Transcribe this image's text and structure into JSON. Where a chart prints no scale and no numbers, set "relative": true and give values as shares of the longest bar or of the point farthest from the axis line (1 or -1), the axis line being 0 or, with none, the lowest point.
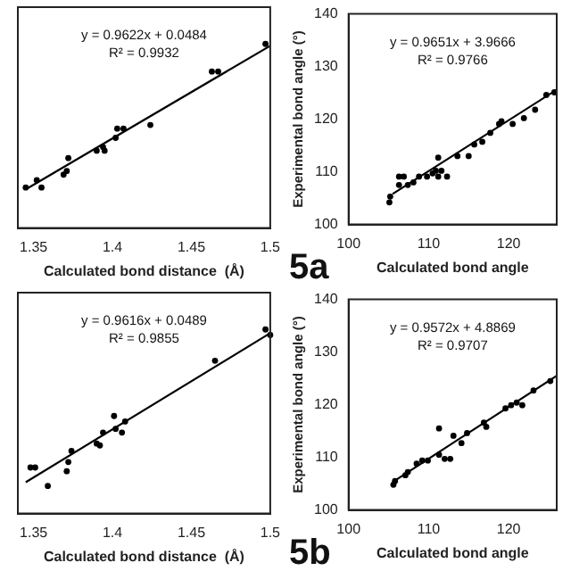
{
  "chart_data": [
    {
      "type": "scatter",
      "relative": true,
      "xlabel": "Calculated bond distance  (Å)",
      "xlim": [
        1.34,
        1.5
      ],
      "xticks": [
        1.35,
        1.4,
        1.45,
        1.5
      ],
      "tick_labels": "x",
      "annotations": [
        "y = 0.9622x + 0.0484",
        "R² = 0.9932"
      ],
      "series": [
        {
          "type": "scatter",
          "marker": "circle",
          "color": "#000000",
          "x": [
            1.345,
            1.352,
            1.355,
            1.369,
            1.371,
            1.372,
            1.39,
            1.394,
            1.395,
            1.402,
            1.403,
            1.407,
            1.424,
            1.463,
            1.467,
            1.497
          ],
          "values": [
            0.22,
            0.26,
            0.22,
            0.29,
            0.31,
            0.38,
            0.42,
            0.44,
            0.42,
            0.49,
            0.54,
            0.54,
            0.56,
            0.85,
            0.85,
            1.0
          ]
        },
        {
          "type": "line",
          "marker": "none",
          "color": "#000000",
          "x": [
            1.345,
            1.5
          ],
          "values": [
            0.21,
            0.99
          ]
        }
      ]
    },
    {
      "type": "scatter",
      "xlabel": "Calculated bond angle",
      "ylabel": "Experimental bond angle (°)",
      "xlim": [
        100,
        126
      ],
      "xticks": [
        100,
        110,
        120
      ],
      "ylim": [
        100,
        140
      ],
      "yticks": [
        100,
        110,
        120,
        130,
        140
      ],
      "annotations": [
        "y = 0.9651x + 3.9666",
        "R² = 0.9766",
        "5a"
      ],
      "series": [
        {
          "type": "scatter",
          "marker": "circle",
          "color": "#000000",
          "x": [
            105.1,
            105.2,
            106.3,
            106.9,
            106.3,
            107.4,
            108.1,
            108.8,
            109.8,
            110.5,
            111.2,
            110.9,
            111.6,
            112.3,
            111.2,
            113.6,
            115.0,
            115.7,
            116.7,
            117.7,
            118.8,
            119.1,
            120.5,
            121.9,
            123.3,
            124.7,
            125.7
          ],
          "values": [
            104.2,
            105.3,
            109.1,
            109.1,
            107.5,
            107.5,
            108.0,
            109.1,
            109.1,
            109.7,
            109.1,
            110.2,
            110.2,
            109.1,
            112.7,
            113.0,
            113.0,
            115.2,
            115.7,
            117.4,
            119.1,
            119.6,
            119.1,
            120.2,
            121.8,
            124.6,
            125.1
          ]
        },
        {
          "type": "line",
          "marker": "none",
          "color": "#000000",
          "x": [
            105.5,
            126
          ],
          "values": [
            105.8,
            125.6
          ]
        }
      ]
    },
    {
      "type": "scatter",
      "relative": true,
      "xlabel": "Calculated bond distance  (Å)",
      "xlim": [
        1.34,
        1.5
      ],
      "xticks": [
        1.35,
        1.4,
        1.45,
        1.5
      ],
      "tick_labels": "x",
      "annotations": [
        "y = 0.9616x + 0.0489",
        "R² = 0.9855"
      ],
      "series": [
        {
          "type": "scatter",
          "marker": "circle",
          "color": "#000000",
          "x": [
            1.348,
            1.351,
            1.359,
            1.371,
            1.372,
            1.374,
            1.39,
            1.392,
            1.394,
            1.401,
            1.402,
            1.406,
            1.408,
            1.465,
            1.497,
            1.5
          ],
          "values": [
            0.25,
            0.25,
            0.15,
            0.23,
            0.28,
            0.34,
            0.38,
            0.37,
            0.44,
            0.53,
            0.46,
            0.44,
            0.5,
            0.83,
            1.0,
            0.97
          ]
        },
        {
          "type": "line",
          "marker": "none",
          "color": "#000000",
          "x": [
            1.345,
            1.5
          ],
          "values": [
            0.17,
            0.98
          ]
        }
      ]
    },
    {
      "type": "scatter",
      "xlabel": "Calculated bond angle",
      "ylabel": "Experimental bond angle (°)",
      "xlim": [
        100,
        126
      ],
      "xticks": [
        100,
        110,
        120
      ],
      "ylim": [
        100,
        140
      ],
      "yticks": [
        100,
        110,
        120,
        130,
        140
      ],
      "annotations": [
        "y = 0.9572x + 4.8869",
        "R² = 0.9707",
        "5b"
      ],
      "series": [
        {
          "type": "scatter",
          "marker": "circle",
          "color": "#000000",
          "x": [
            105.6,
            105.8,
            107.4,
            107.1,
            108.5,
            109.2,
            109.9,
            111.3,
            112.0,
            112.7,
            111.3,
            113.1,
            114.1,
            114.8,
            116.9,
            117.2,
            119.6,
            120.3,
            121.0,
            121.7,
            123.1,
            125.2
          ],
          "values": [
            104.8,
            105.5,
            107.2,
            106.6,
            108.8,
            109.4,
            109.4,
            110.5,
            109.7,
            109.7,
            115.5,
            114.1,
            112.7,
            114.6,
            116.6,
            115.8,
            119.3,
            119.9,
            120.4,
            119.9,
            122.7,
            124.5
          ]
        },
        {
          "type": "line",
          "marker": "none",
          "color": "#000000",
          "x": [
            105.5,
            126
          ],
          "values": [
            105.3,
            125.5
          ]
        }
      ]
    }
  ]
}
